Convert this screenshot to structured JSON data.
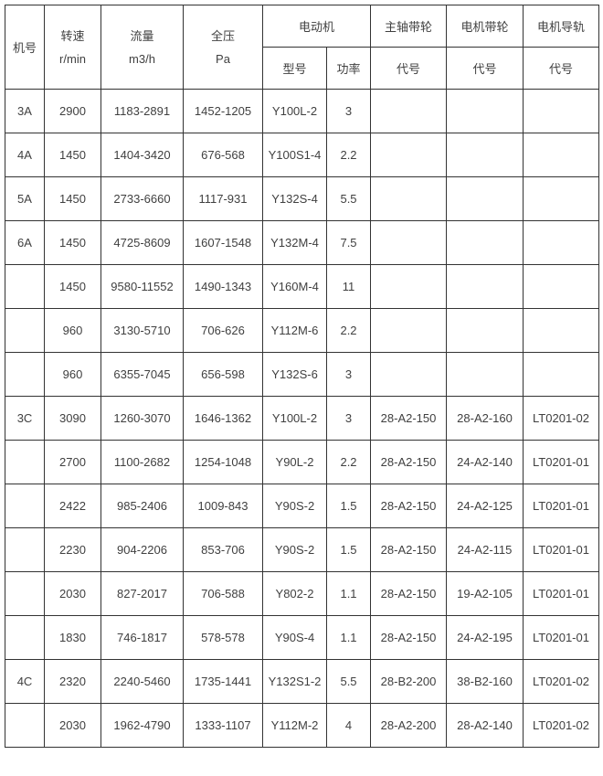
{
  "colors": {
    "border-color": "#333333",
    "text-color": "#404040",
    "bg-color": "#ffffff"
  },
  "table": {
    "header": {
      "machine_no": "机号",
      "speed_line1": "转速",
      "speed_line2": "r/min",
      "flow_line1": "流量",
      "flow_line2": "m3/h",
      "pressure_line1": "全压",
      "pressure_line2": "Pa",
      "motor_group": "电动机",
      "motor_model": "型号",
      "motor_power": "功率",
      "shaft_pulley_group": "主轴带轮",
      "motor_pulley_group": "电机带轮",
      "motor_rail_group": "电机导轨",
      "code_shaft_pulley": "代号",
      "code_motor_pulley": "代号",
      "code_motor_rail": "代号"
    },
    "rows": [
      [
        "3A",
        "2900",
        "1183-2891",
        "1452-1205",
        "Y100L-2",
        "3",
        "",
        "",
        ""
      ],
      [
        "4A",
        "1450",
        "1404-3420",
        "676-568",
        "Y100S1-4",
        "2.2",
        "",
        "",
        ""
      ],
      [
        "5A",
        "1450",
        "2733-6660",
        "1117-931",
        "Y132S-4",
        "5.5",
        "",
        "",
        ""
      ],
      [
        "6A",
        "1450",
        "4725-8609",
        "1607-1548",
        "Y132M-4",
        "7.5",
        "",
        "",
        ""
      ],
      [
        "",
        "1450",
        "9580-11552",
        "1490-1343",
        "Y160M-4",
        "11",
        "",
        "",
        ""
      ],
      [
        "",
        "960",
        "3130-5710",
        "706-626",
        "Y112M-6",
        "2.2",
        "",
        "",
        ""
      ],
      [
        "",
        "960",
        "6355-7045",
        "656-598",
        "Y132S-6",
        "3",
        "",
        "",
        ""
      ],
      [
        "3C",
        "3090",
        "1260-3070",
        "1646-1362",
        "Y100L-2",
        "3",
        "28-A2-150",
        "28-A2-160",
        "LT0201-02"
      ],
      [
        "",
        "2700",
        "1100-2682",
        "1254-1048",
        "Y90L-2",
        "2.2",
        "28-A2-150",
        "24-A2-140",
        "LT0201-01"
      ],
      [
        "",
        "2422",
        "985-2406",
        "1009-843",
        "Y90S-2",
        "1.5",
        "28-A2-150",
        "24-A2-125",
        "LT0201-01"
      ],
      [
        "",
        "2230",
        "904-2206",
        "853-706",
        "Y90S-2",
        "1.5",
        "28-A2-150",
        "24-A2-115",
        "LT0201-01"
      ],
      [
        "",
        "2030",
        "827-2017",
        "706-588",
        "Y802-2",
        "1.1",
        "28-A2-150",
        "19-A2-105",
        "LT0201-01"
      ],
      [
        "",
        "1830",
        "746-1817",
        "578-578",
        "Y90S-4",
        "1.1",
        "28-A2-150",
        "24-A2-195",
        "LT0201-01"
      ],
      [
        "4C",
        "2320",
        "2240-5460",
        "1735-1441",
        "Y132S1-2",
        "5.5",
        "28-B2-200",
        "38-B2-160",
        "LT0201-02"
      ],
      [
        "",
        "2030",
        "1962-4790",
        "1333-1107",
        "Y112M-2",
        "4",
        "28-A2-200",
        "28-A2-140",
        "LT0201-02"
      ]
    ]
  }
}
